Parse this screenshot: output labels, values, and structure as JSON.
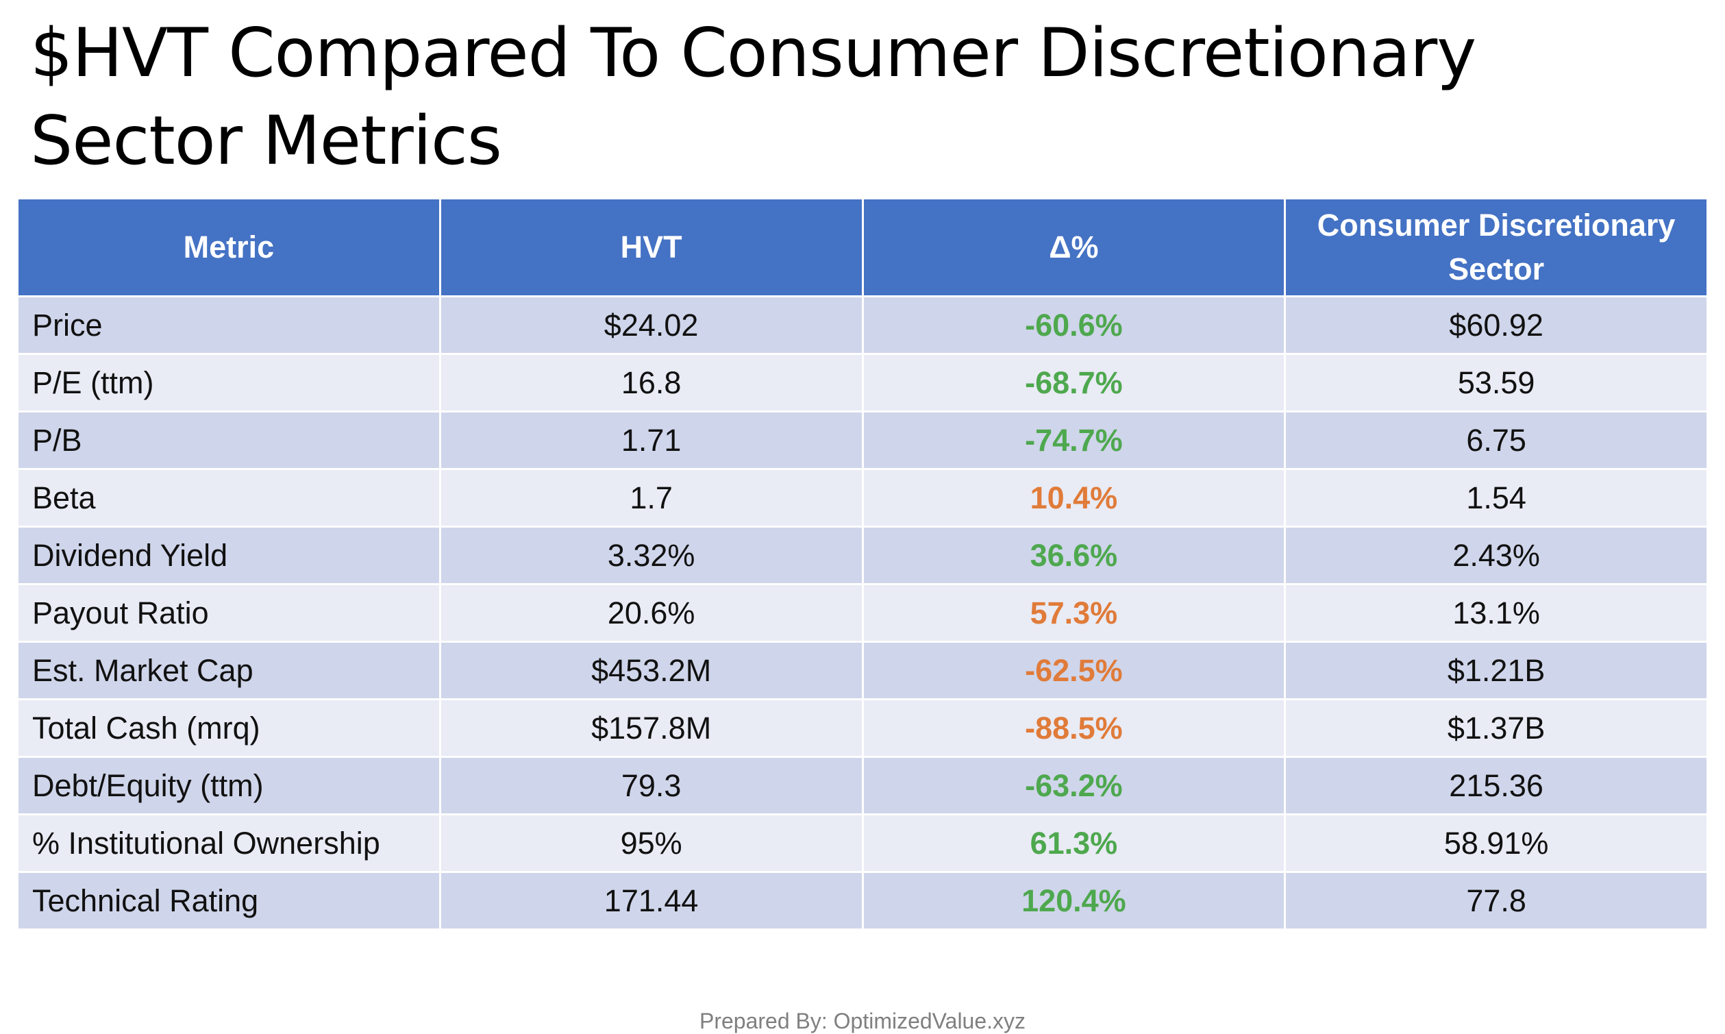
{
  "title": {
    "line1": "$HVT Compared To Consumer Discretionary",
    "line2": "Sector Metrics"
  },
  "table": {
    "headers": [
      "Metric",
      "HVT",
      "Δ%",
      "Consumer Discretionary Sector"
    ],
    "rows": [
      {
        "metric": "Price",
        "hvt": "$24.02",
        "delta": "-60.6%",
        "sector": "$60.92",
        "delta_color": "green"
      },
      {
        "metric": "P/E (ttm)",
        "hvt": "16.8",
        "delta": "-68.7%",
        "sector": "53.59",
        "delta_color": "green"
      },
      {
        "metric": "P/B",
        "hvt": "1.71",
        "delta": "-74.7%",
        "sector": "6.75",
        "delta_color": "green"
      },
      {
        "metric": "Beta",
        "hvt": "1.7",
        "delta": "10.4%",
        "sector": "1.54",
        "delta_color": "orange"
      },
      {
        "metric": "Dividend Yield",
        "hvt": "3.32%",
        "delta": "36.6%",
        "sector": "2.43%",
        "delta_color": "green"
      },
      {
        "metric": "Payout Ratio",
        "hvt": "20.6%",
        "delta": "57.3%",
        "sector": "13.1%",
        "delta_color": "orange"
      },
      {
        "metric": "Est. Market Cap",
        "hvt": "$453.2M",
        "delta": "-62.5%",
        "sector": "$1.21B",
        "delta_color": "orange"
      },
      {
        "metric": "Total Cash (mrq)",
        "hvt": "$157.8M",
        "delta": "-88.5%",
        "sector": "$1.37B",
        "delta_color": "orange"
      },
      {
        "metric": "Debt/Equity (ttm)",
        "hvt": "79.3",
        "delta": "-63.2%",
        "sector": "215.36",
        "delta_color": "green"
      },
      {
        "metric": "% Institutional Ownership",
        "hvt": "95%",
        "delta": "61.3%",
        "sector": "58.91%",
        "delta_color": "green"
      },
      {
        "metric": "Technical Rating",
        "hvt": "171.44",
        "delta": "120.4%",
        "sector": "77.8",
        "delta_color": "green"
      }
    ]
  },
  "colors": {
    "header_bg": "#4472c4",
    "row_dark": "#cfd5ea",
    "row_light": "#e9ebf5",
    "delta_green": "#4ea84e",
    "delta_orange": "#e07b39"
  },
  "footer": "Prepared By: OptimizedValue.xyz"
}
